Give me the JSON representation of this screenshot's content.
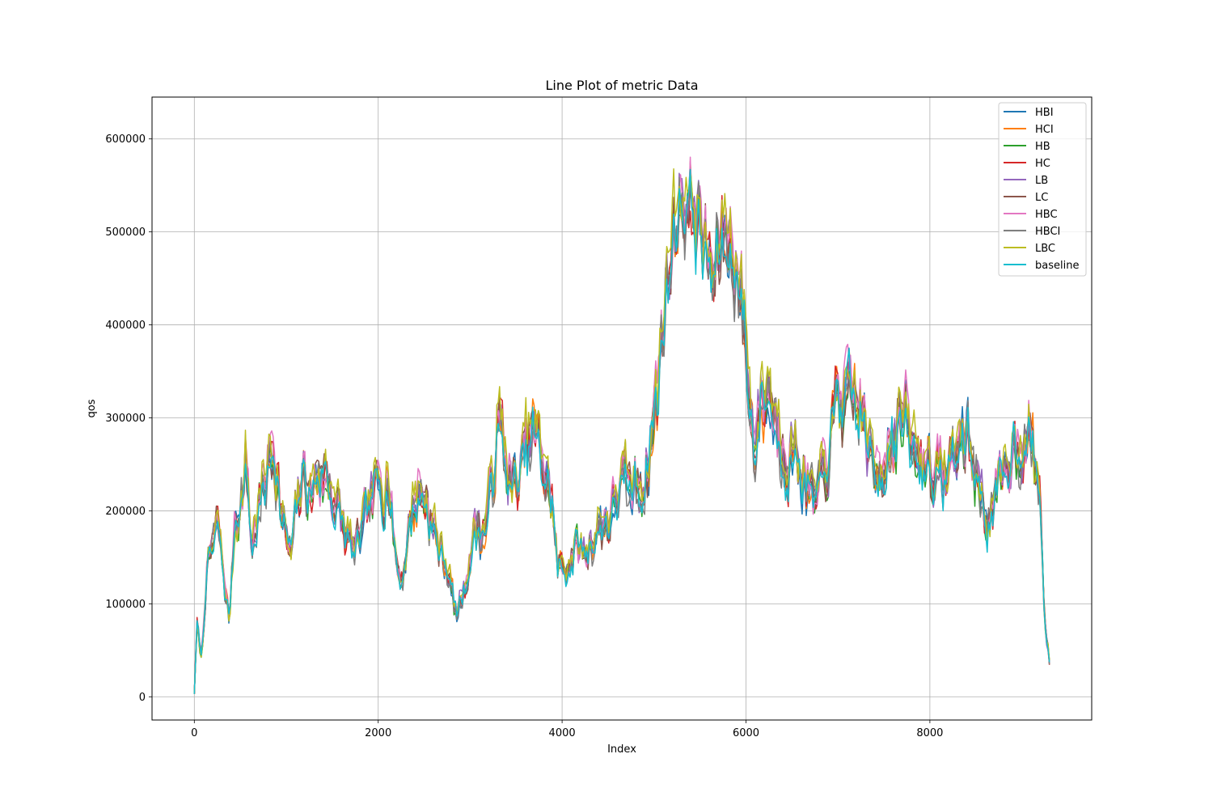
{
  "chart_data": {
    "type": "line",
    "title": "Line Plot of metric Data",
    "xlabel": "Index",
    "ylabel": "qos",
    "xlim": [
      -460,
      9760
    ],
    "ylim": [
      -25000,
      645000
    ],
    "x_ticks": [
      0,
      2000,
      4000,
      6000,
      8000
    ],
    "y_ticks": [
      0,
      100000,
      200000,
      300000,
      400000,
      500000,
      600000
    ],
    "x_tick_labels": [
      "0",
      "2000",
      "4000",
      "6000",
      "8000"
    ],
    "y_tick_labels": [
      "0",
      "100000",
      "200000",
      "300000",
      "400000",
      "500000",
      "600000"
    ],
    "grid": true,
    "legend_position": "top-right",
    "x_end": 9300,
    "samples_per_series": 620,
    "anchors": [
      [
        0,
        5000
      ],
      [
        30,
        75000
      ],
      [
        80,
        40000
      ],
      [
        130,
        130000
      ],
      [
        200,
        160000
      ],
      [
        260,
        180000
      ],
      [
        330,
        120000
      ],
      [
        380,
        80000
      ],
      [
        440,
        190000
      ],
      [
        500,
        205000
      ],
      [
        560,
        250000
      ],
      [
        630,
        160000
      ],
      [
        700,
        210000
      ],
      [
        780,
        230000
      ],
      [
        850,
        270000
      ],
      [
        900,
        245000
      ],
      [
        960,
        190000
      ],
      [
        1050,
        145000
      ],
      [
        1100,
        185000
      ],
      [
        1200,
        240000
      ],
      [
        1260,
        210000
      ],
      [
        1350,
        240000
      ],
      [
        1450,
        230000
      ],
      [
        1550,
        200000
      ],
      [
        1650,
        170000
      ],
      [
        1750,
        150000
      ],
      [
        1850,
        185000
      ],
      [
        1950,
        210000
      ],
      [
        2050,
        220000
      ],
      [
        2100,
        250000
      ],
      [
        2200,
        140000
      ],
      [
        2260,
        125000
      ],
      [
        2350,
        190000
      ],
      [
        2450,
        215000
      ],
      [
        2550,
        200000
      ],
      [
        2650,
        160000
      ],
      [
        2750,
        140000
      ],
      [
        2850,
        85000
      ],
      [
        2950,
        120000
      ],
      [
        3050,
        180000
      ],
      [
        3150,
        175000
      ],
      [
        3250,
        230000
      ],
      [
        3300,
        295000
      ],
      [
        3400,
        240000
      ],
      [
        3500,
        215000
      ],
      [
        3600,
        260000
      ],
      [
        3700,
        280000
      ],
      [
        3800,
        240000
      ],
      [
        3900,
        200000
      ],
      [
        3950,
        135000
      ],
      [
        4050,
        140000
      ],
      [
        4150,
        160000
      ],
      [
        4250,
        150000
      ],
      [
        4350,
        175000
      ],
      [
        4450,
        185000
      ],
      [
        4550,
        195000
      ],
      [
        4650,
        225000
      ],
      [
        4750,
        215000
      ],
      [
        4850,
        230000
      ],
      [
        4950,
        260000
      ],
      [
        5000,
        300000
      ],
      [
        5050,
        320000
      ],
      [
        5100,
        420000
      ],
      [
        5200,
        480000
      ],
      [
        5300,
        540000
      ],
      [
        5400,
        520000
      ],
      [
        5480,
        510000
      ],
      [
        5550,
        480000
      ],
      [
        5650,
        430000
      ],
      [
        5700,
        470000
      ],
      [
        5800,
        490000
      ],
      [
        5900,
        460000
      ],
      [
        6000,
        370000
      ],
      [
        6080,
        270000
      ],
      [
        6150,
        310000
      ],
      [
        6250,
        330000
      ],
      [
        6350,
        280000
      ],
      [
        6450,
        265000
      ],
      [
        6550,
        260000
      ],
      [
        6650,
        230000
      ],
      [
        6750,
        200000
      ],
      [
        6850,
        230000
      ],
      [
        6950,
        290000
      ],
      [
        7000,
        320000
      ],
      [
        7100,
        305000
      ],
      [
        7200,
        310000
      ],
      [
        7300,
        280000
      ],
      [
        7400,
        230000
      ],
      [
        7500,
        260000
      ],
      [
        7600,
        285000
      ],
      [
        7700,
        300000
      ],
      [
        7800,
        260000
      ],
      [
        7900,
        250000
      ],
      [
        8000,
        255000
      ],
      [
        8100,
        230000
      ],
      [
        8200,
        240000
      ],
      [
        8300,
        260000
      ],
      [
        8400,
        280000
      ],
      [
        8500,
        240000
      ],
      [
        8600,
        190000
      ],
      [
        8700,
        200000
      ],
      [
        8800,
        225000
      ],
      [
        8900,
        270000
      ],
      [
        9000,
        280000
      ],
      [
        9100,
        270000
      ],
      [
        9200,
        210000
      ],
      [
        9250,
        80000
      ],
      [
        9300,
        35000
      ]
    ],
    "series": [
      {
        "name": "HBI",
        "color": "#1f77b4",
        "offset": 2000,
        "noise": 16000,
        "seed": 11
      },
      {
        "name": "HCI",
        "color": "#ff7f0e",
        "offset": 3000,
        "noise": 16000,
        "seed": 23
      },
      {
        "name": "HB",
        "color": "#2ca02c",
        "offset": 1000,
        "noise": 15000,
        "seed": 37
      },
      {
        "name": "HC",
        "color": "#d62728",
        "offset": 4000,
        "noise": 16000,
        "seed": 41
      },
      {
        "name": "LB",
        "color": "#9467bd",
        "offset": 6000,
        "noise": 17000,
        "seed": 53
      },
      {
        "name": "LC",
        "color": "#8c564b",
        "offset": 5000,
        "noise": 17000,
        "seed": 67
      },
      {
        "name": "HBC",
        "color": "#e377c2",
        "offset": 9000,
        "noise": 18000,
        "seed": 71
      },
      {
        "name": "HBCI",
        "color": "#7f7f7f",
        "offset": 2000,
        "noise": 18000,
        "seed": 83
      },
      {
        "name": "LBC",
        "color": "#bcbd22",
        "offset": 10000,
        "noise": 18000,
        "seed": 97
      },
      {
        "name": "baseline",
        "color": "#17becf",
        "offset": 0,
        "noise": 14000,
        "seed": 101
      }
    ]
  }
}
